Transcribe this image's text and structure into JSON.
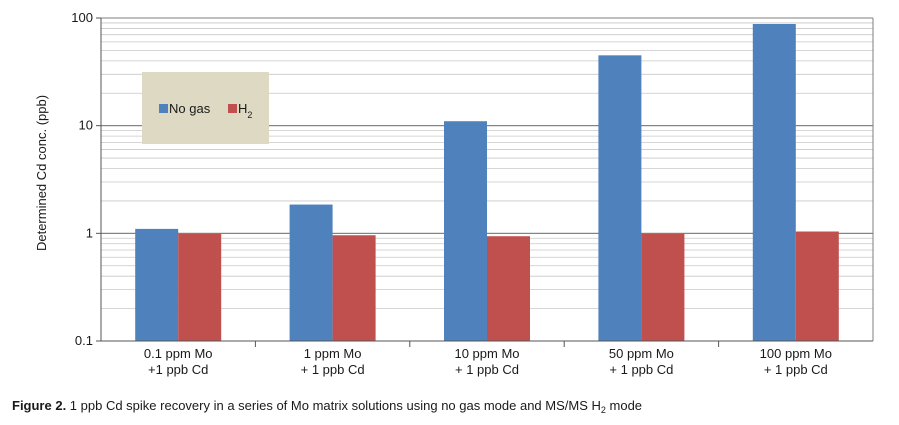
{
  "chart_data": {
    "type": "bar",
    "yscale": "log",
    "ylim": [
      0.1,
      100
    ],
    "ylabel": "Determined Cd conc. (ppb)",
    "xlabel": "",
    "yticks": [
      "100",
      "10",
      "1",
      "0.1"
    ],
    "categories": [
      [
        "0.1 ppm Mo",
        "+1 ppb Cd"
      ],
      [
        "1 ppm Mo",
        "+ 1 ppb Cd"
      ],
      [
        "10 ppm Mo",
        "+ 1 ppb Cd"
      ],
      [
        "50 ppm Mo",
        "+ 1 ppb Cd"
      ],
      [
        "100 ppm Mo",
        "+ 1 ppb Cd"
      ]
    ],
    "series": [
      {
        "name": "No gas",
        "color": "#4f81bd",
        "values": [
          1.1,
          1.85,
          11.0,
          45.0,
          88.0
        ]
      },
      {
        "name": "H",
        "name_subscript": "2",
        "color": "#c0504d",
        "values": [
          0.99,
          0.96,
          0.94,
          0.99,
          1.04
        ]
      }
    ],
    "grid": true,
    "legend": {
      "position": "top-left",
      "background": "#ddd9c3"
    }
  },
  "caption": {
    "label": "Figure 2.",
    "text": " 1 ppb Cd spike recovery in a series of Mo matrix solutions using no gas mode and MS/MS H",
    "subscript": "2",
    "suffix": " mode"
  }
}
